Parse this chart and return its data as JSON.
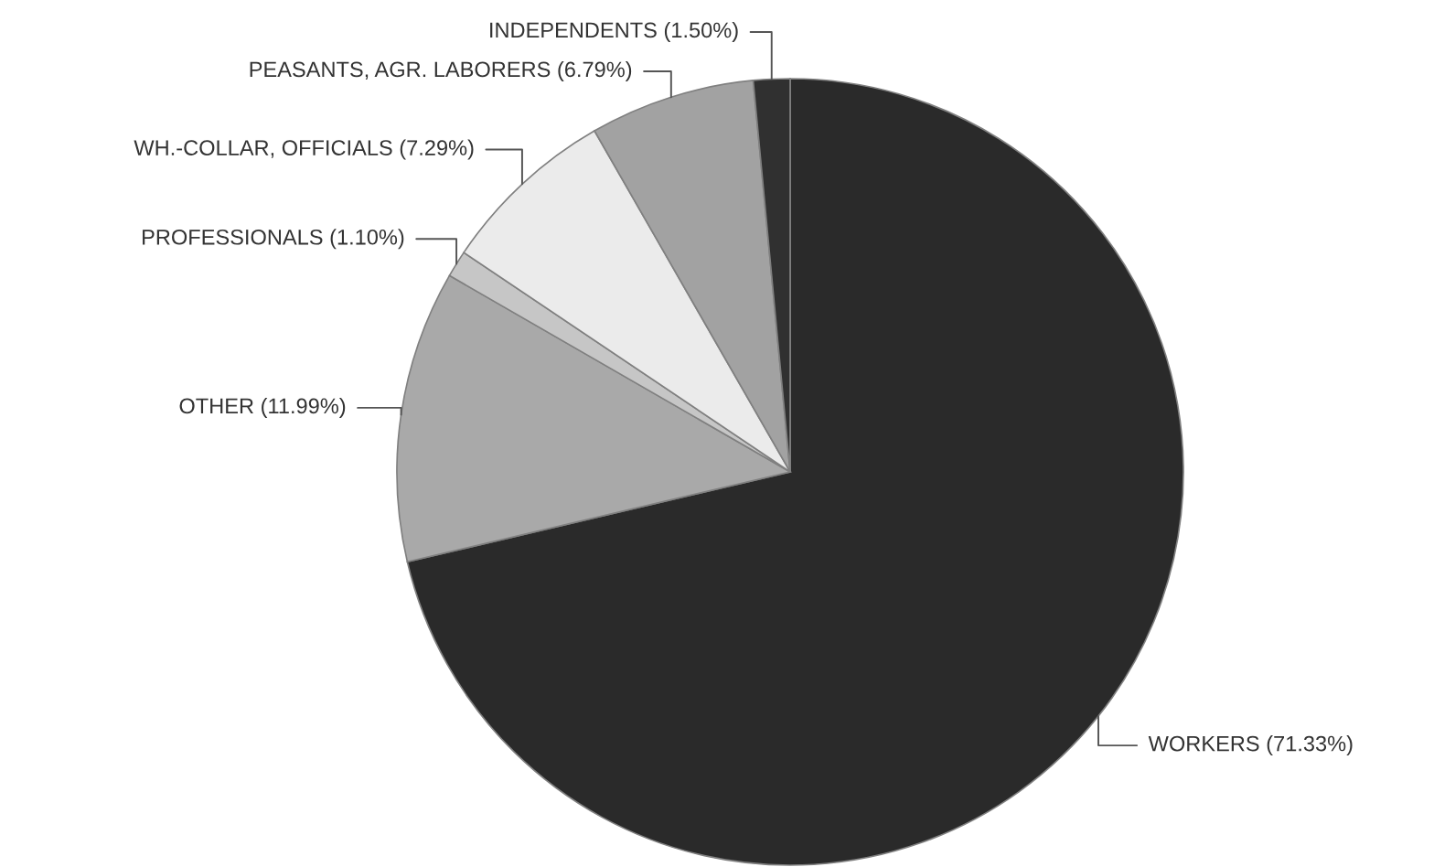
{
  "chart_data": {
    "type": "pie",
    "categories": [
      "WORKERS",
      "OTHER",
      "PROFESSIONALS",
      "WH.-COLLAR, OFFICIALS",
      "PEASANTS, AGR. LABORERS",
      "INDEPENDENTS"
    ],
    "values": [
      71.33,
      11.99,
      1.1,
      7.29,
      6.79,
      1.5
    ],
    "value_labels": [
      "(71.33%)",
      "(11.99%)",
      "(1.10%)",
      "(7.29%)",
      "(6.79%)",
      "(1.50%)"
    ],
    "colors": [
      "#2a2a2a",
      "#a9a9a9",
      "#c6c6c6",
      "#ebebeb",
      "#a2a2a2",
      "#303030"
    ]
  }
}
